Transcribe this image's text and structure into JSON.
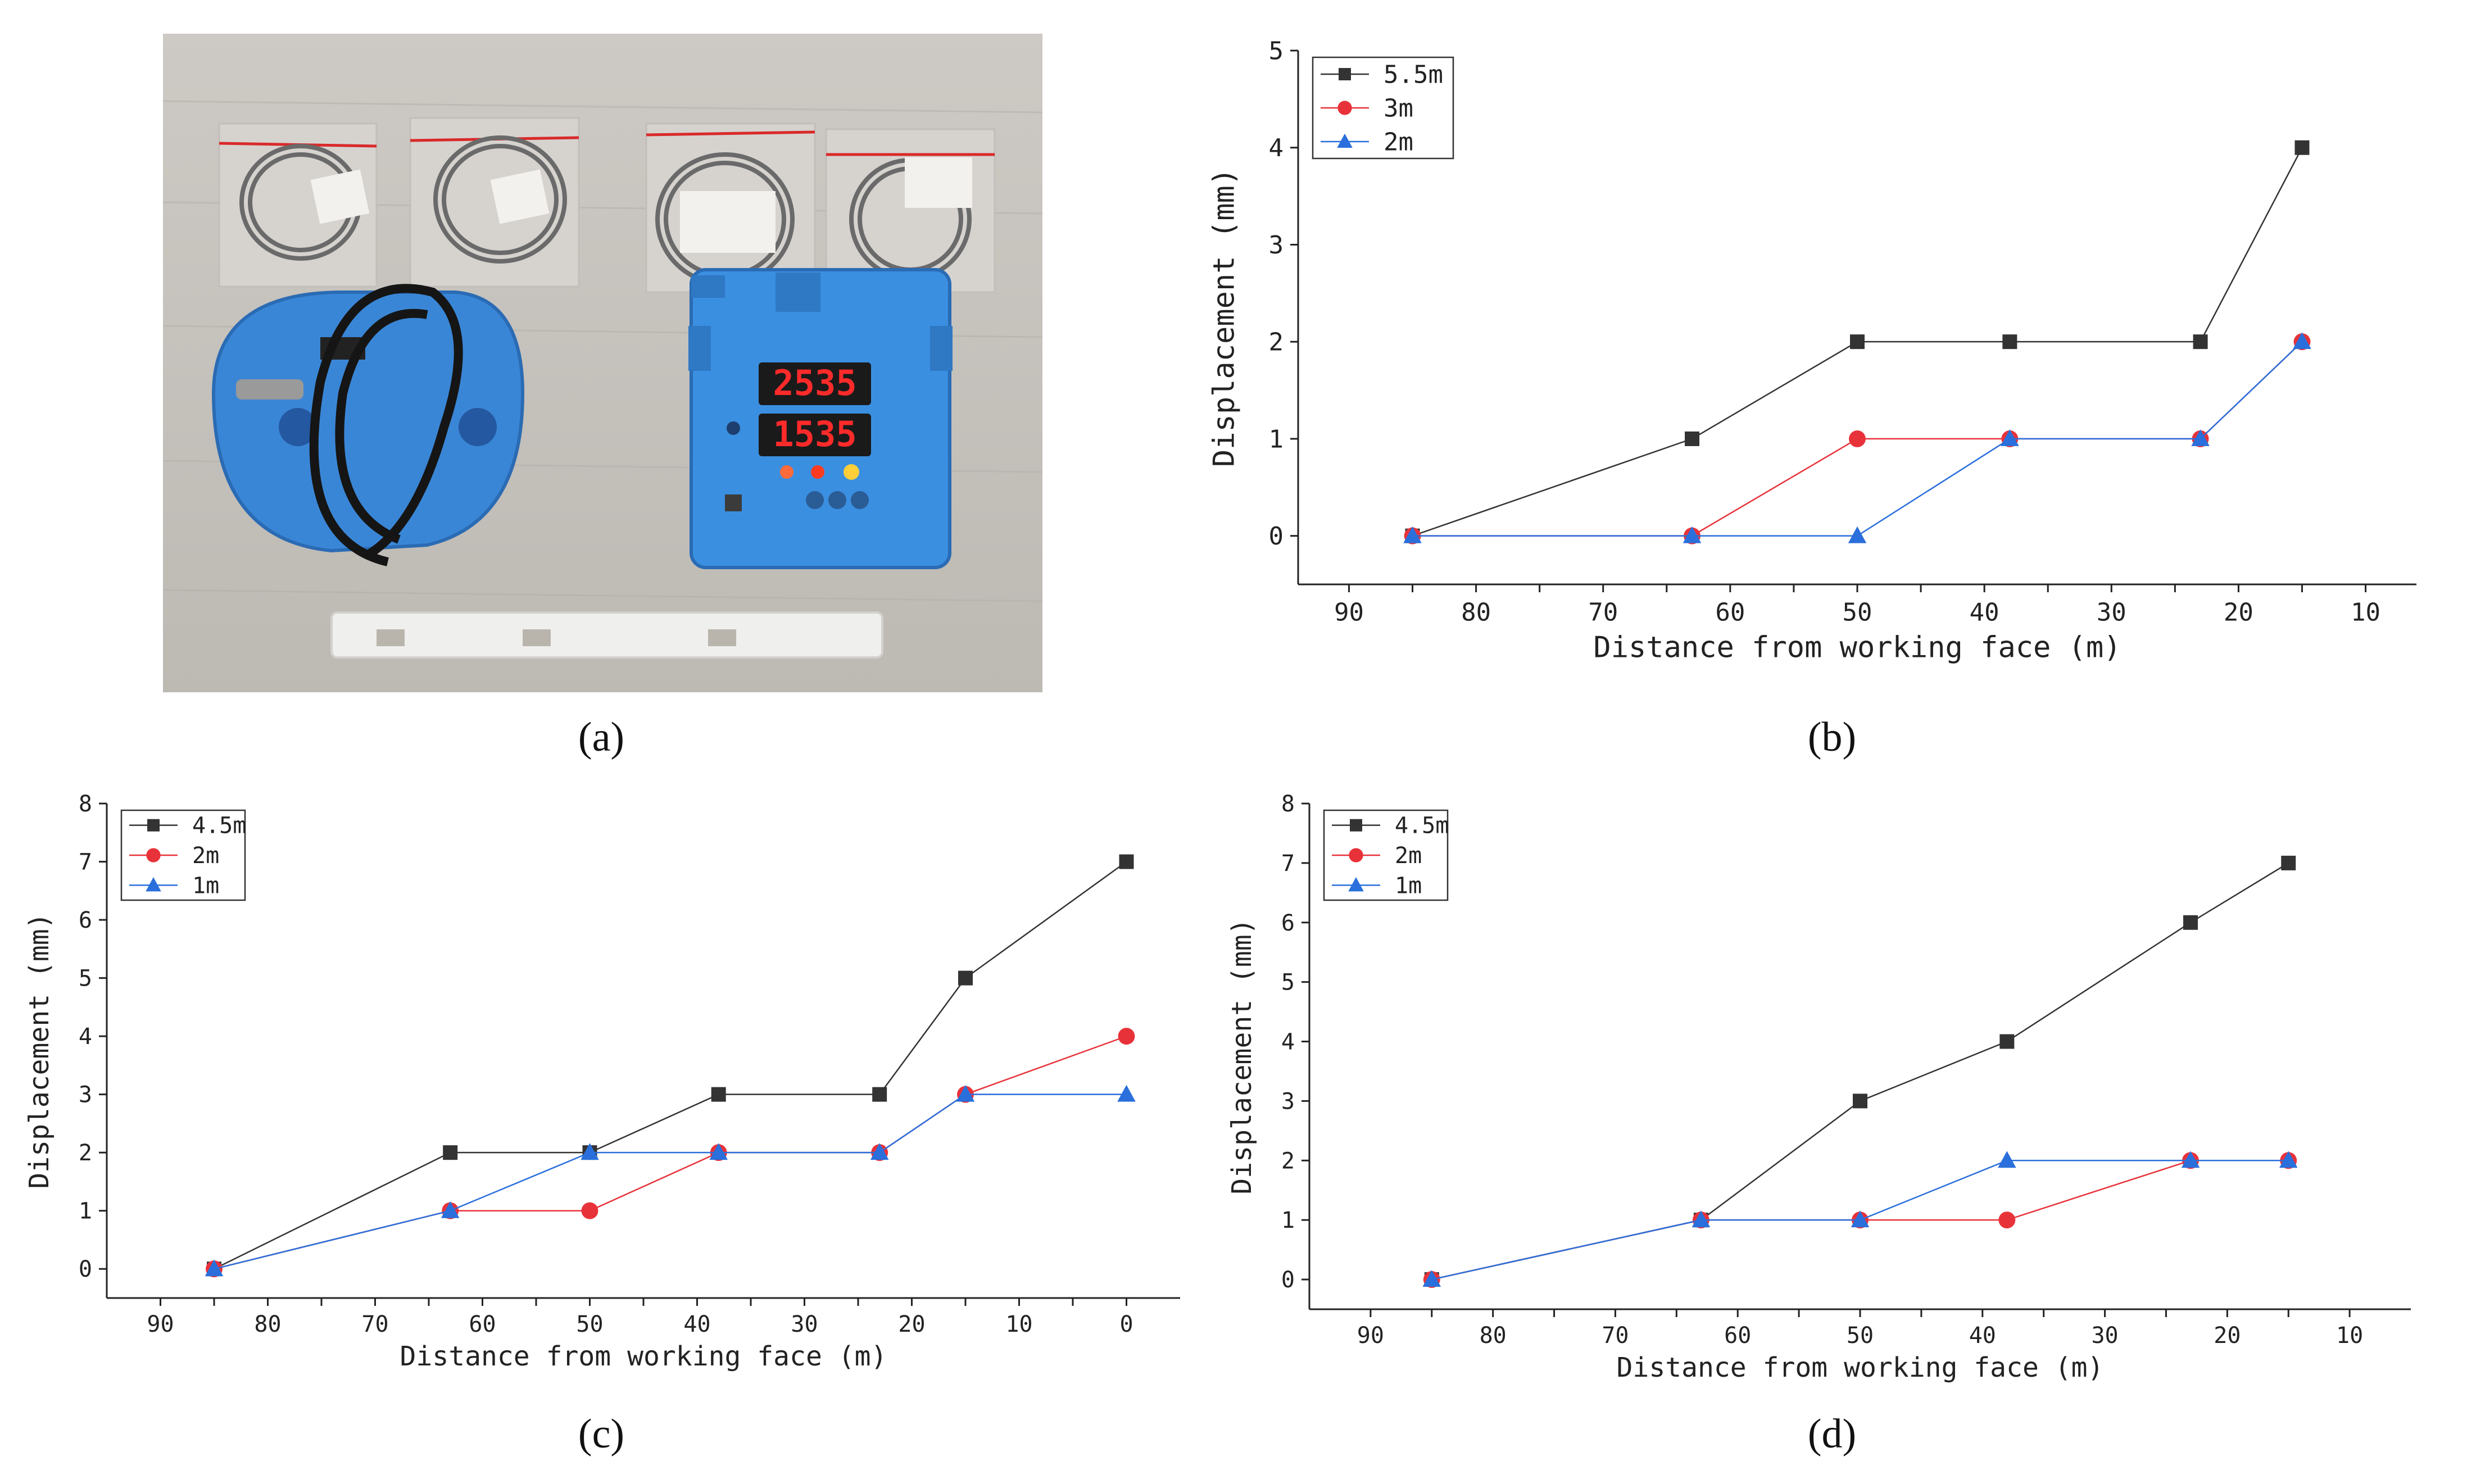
{
  "panel_labels": {
    "a": "(a)",
    "b": "(b)",
    "c": "(c)",
    "d": "(d)"
  },
  "photo": {
    "display_top": "2535",
    "display_bottom": "1535"
  },
  "chart_data": [
    {
      "id": "b",
      "type": "line",
      "title": "",
      "xlabel": "Distance from working face (m)",
      "ylabel": "Displacement (mm)",
      "xlim": [
        94,
        6
      ],
      "ylim": [
        -0.5,
        5
      ],
      "xticks": [
        "90",
        "80",
        "70",
        "60",
        "50",
        "40",
        "30",
        "20",
        "10"
      ],
      "yticks": [
        "0",
        "1",
        "2",
        "3",
        "4",
        "5"
      ],
      "legend": "top-left",
      "series": [
        {
          "name": "5.5m",
          "color": "#333333",
          "marker": "square",
          "x": [
            85,
            63,
            50,
            38,
            23,
            15
          ],
          "y": [
            0,
            1,
            2,
            2,
            2,
            4
          ]
        },
        {
          "name": "3m",
          "color": "#e8323a",
          "marker": "circle",
          "x": [
            85,
            63,
            50,
            38,
            23,
            15
          ],
          "y": [
            0,
            0,
            1,
            1,
            1,
            2
          ]
        },
        {
          "name": "2m",
          "color": "#2a6fdb",
          "marker": "triangle",
          "x": [
            85,
            63,
            50,
            38,
            23,
            15
          ],
          "y": [
            0,
            0,
            0,
            1,
            1,
            2
          ]
        }
      ]
    },
    {
      "id": "c",
      "type": "line",
      "title": "",
      "xlabel": "Distance from working face (m)",
      "ylabel": "Displacement (mm)",
      "xlim": [
        95,
        -5
      ],
      "ylim": [
        -0.5,
        8
      ],
      "xticks": [
        "90",
        "80",
        "70",
        "60",
        "50",
        "40",
        "30",
        "20",
        "10",
        "0"
      ],
      "yticks": [
        "0",
        "1",
        "2",
        "3",
        "4",
        "5",
        "6",
        "7",
        "8"
      ],
      "legend": "top-left",
      "series": [
        {
          "name": "4.5m",
          "color": "#333333",
          "marker": "square",
          "x": [
            85,
            63,
            50,
            38,
            23,
            15,
            0
          ],
          "y": [
            0,
            2,
            2,
            3,
            3,
            5,
            7
          ]
        },
        {
          "name": "2m",
          "color": "#e8323a",
          "marker": "circle",
          "x": [
            85,
            63,
            50,
            38,
            23,
            15,
            0
          ],
          "y": [
            0,
            1,
            1,
            2,
            2,
            3,
            4
          ]
        },
        {
          "name": "1m",
          "color": "#2a6fdb",
          "marker": "triangle",
          "x": [
            85,
            63,
            50,
            38,
            23,
            15,
            0
          ],
          "y": [
            0,
            1,
            2,
            2,
            2,
            3,
            3
          ]
        }
      ]
    },
    {
      "id": "d",
      "type": "line",
      "title": "",
      "xlabel": "Distance from working face (m)",
      "ylabel": "Displacement (mm)",
      "xlim": [
        95,
        5
      ],
      "ylim": [
        -0.5,
        8
      ],
      "xticks": [
        "90",
        "80",
        "70",
        "60",
        "50",
        "40",
        "30",
        "20",
        "10"
      ],
      "yticks": [
        "0",
        "1",
        "2",
        "3",
        "4",
        "5",
        "6",
        "7",
        "8"
      ],
      "legend": "top-left",
      "series": [
        {
          "name": "4.5m",
          "color": "#333333",
          "marker": "square",
          "x": [
            85,
            63,
            50,
            38,
            23,
            15
          ],
          "y": [
            0,
            1,
            3,
            4,
            6,
            7
          ]
        },
        {
          "name": "2m",
          "color": "#e8323a",
          "marker": "circle",
          "x": [
            85,
            63,
            50,
            38,
            23,
            15
          ],
          "y": [
            0,
            1,
            1,
            1,
            2,
            2
          ]
        },
        {
          "name": "1m",
          "color": "#2a6fdb",
          "marker": "triangle",
          "x": [
            85,
            63,
            50,
            38,
            23,
            15
          ],
          "y": [
            0,
            1,
            1,
            2,
            2,
            2
          ]
        }
      ]
    }
  ]
}
